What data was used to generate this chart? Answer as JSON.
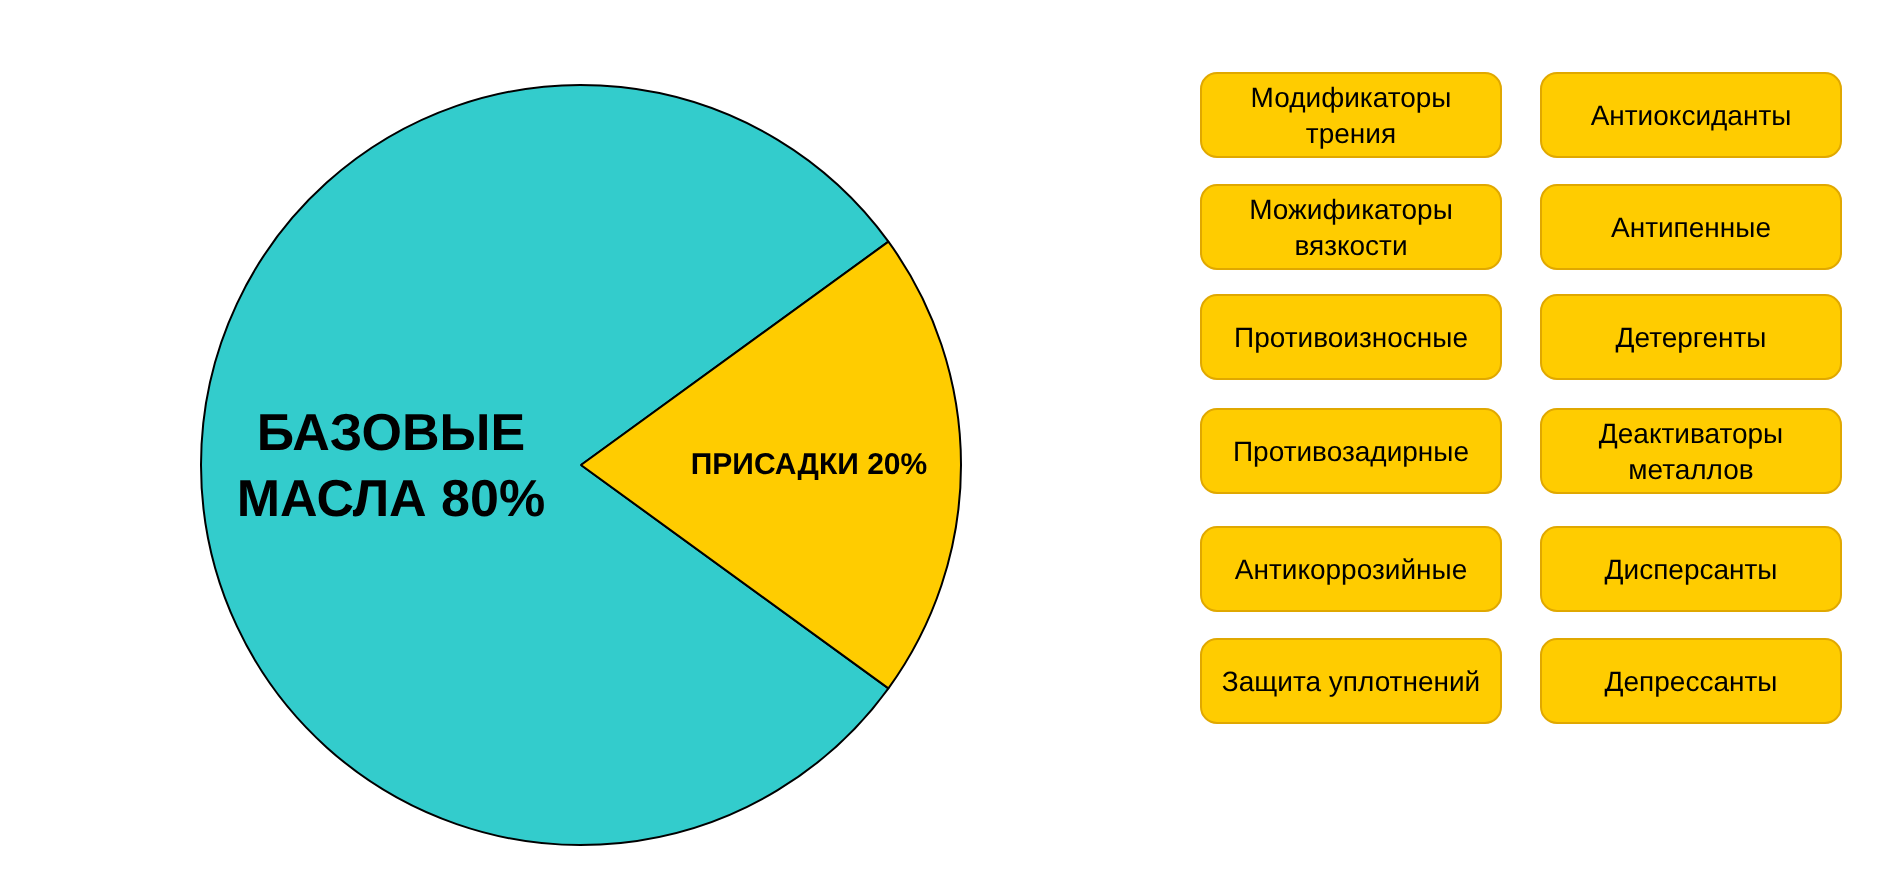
{
  "chart_data": {
    "type": "pie",
    "categories": [
      "БАЗОВЫЕ МАСЛА",
      "ПРИСАДКИ"
    ],
    "values": [
      80,
      20
    ],
    "colors": [
      "#33cccc",
      "#ffcc00"
    ],
    "value_labels": [
      "80%",
      "20%"
    ],
    "annotations": [
      "Модификаторы трения",
      "Антиоксиданты",
      "Можификаторы вязкости",
      "Антипенные",
      "Противоизносные",
      "Детергенты",
      "Противозадирные",
      "Деактиваторы металлов",
      "Антикоррозийные",
      "Дисперсанты",
      "Защита уплотнений",
      "Депрессанты"
    ]
  }
}
